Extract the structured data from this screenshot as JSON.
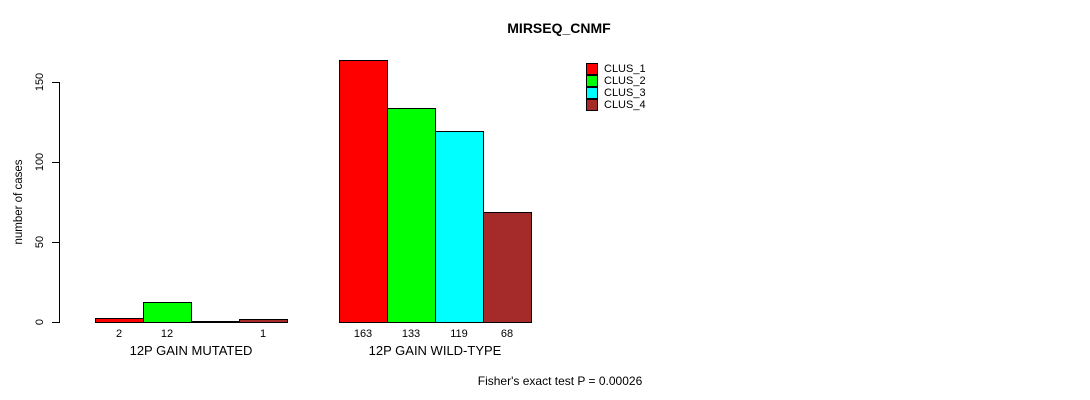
{
  "chart_data": {
    "type": "bar",
    "title": "MIRSEQ_CNMF",
    "ylabel": "number of cases",
    "xlabel": "",
    "yticks": [
      0,
      50,
      100,
      150
    ],
    "ylim": [
      0,
      163
    ],
    "grid": false,
    "legend_position": "top-right",
    "categories": [
      "12P GAIN MUTATED",
      "12P GAIN WILD-TYPE"
    ],
    "series": [
      {
        "name": "CLUS_1",
        "color": "#ff0000",
        "values": [
          2,
          163
        ]
      },
      {
        "name": "CLUS_2",
        "color": "#00ff00",
        "values": [
          12,
          133
        ]
      },
      {
        "name": "CLUS_3",
        "color": "#00ffff",
        "values": [
          0,
          119
        ]
      },
      {
        "name": "CLUS_4",
        "color": "#a52a2a",
        "values": [
          1,
          68
        ]
      }
    ],
    "groups": [
      {
        "label": "12P GAIN MUTATED",
        "values": [
          2,
          12,
          0,
          1
        ],
        "bar_labels": [
          "2",
          "12",
          "",
          "1"
        ]
      },
      {
        "label": "12P GAIN WILD-TYPE",
        "values": [
          163,
          133,
          119,
          68
        ],
        "bar_labels": [
          "163",
          "133",
          "119",
          "68"
        ]
      }
    ],
    "annotation": "Fisher's exact test P = 0.00026",
    "colors": {
      "background": "#ffffff",
      "axis": "#000000",
      "text": "#000000"
    }
  }
}
